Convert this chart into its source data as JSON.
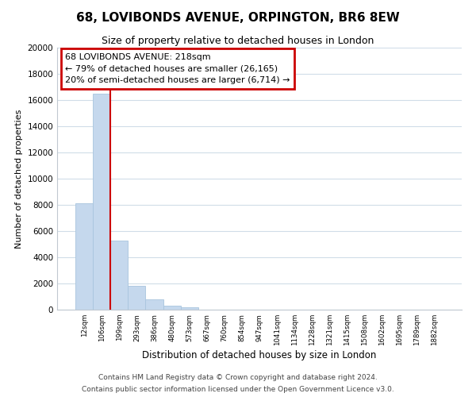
{
  "title": "68, LOVIBONDS AVENUE, ORPINGTON, BR6 8EW",
  "subtitle": "Size of property relative to detached houses in London",
  "xlabel": "Distribution of detached houses by size in London",
  "ylabel": "Number of detached properties",
  "bar_labels": [
    "12sqm",
    "106sqm",
    "199sqm",
    "293sqm",
    "386sqm",
    "480sqm",
    "573sqm",
    "667sqm",
    "760sqm",
    "854sqm",
    "947sqm",
    "1041sqm",
    "1134sqm",
    "1228sqm",
    "1321sqm",
    "1415sqm",
    "1508sqm",
    "1602sqm",
    "1695sqm",
    "1789sqm",
    "1882sqm"
  ],
  "bar_values": [
    8100,
    16500,
    5300,
    1800,
    800,
    300,
    200,
    0,
    0,
    0,
    0,
    0,
    0,
    0,
    0,
    0,
    0,
    0,
    0,
    0,
    0
  ],
  "bar_color": "#c5d8ed",
  "bar_edge_color": "#a8c4de",
  "vline_color": "#cc0000",
  "annotation_box_edgecolor": "#cc0000",
  "ylim": [
    0,
    20000
  ],
  "yticks": [
    0,
    2000,
    4000,
    6000,
    8000,
    10000,
    12000,
    14000,
    16000,
    18000,
    20000
  ],
  "footer1": "Contains HM Land Registry data © Crown copyright and database right 2024.",
  "footer2": "Contains public sector information licensed under the Open Government Licence v3.0.",
  "background_color": "#ffffff",
  "grid_color": "#d0dde8",
  "ann_line1": "68 LOVIBONDS AVENUE: 218sqm",
  "ann_line2": "← 79% of detached houses are smaller (26,165)",
  "ann_line3": "20% of semi-detached houses are larger (6,714) →",
  "vline_x": 1.5
}
